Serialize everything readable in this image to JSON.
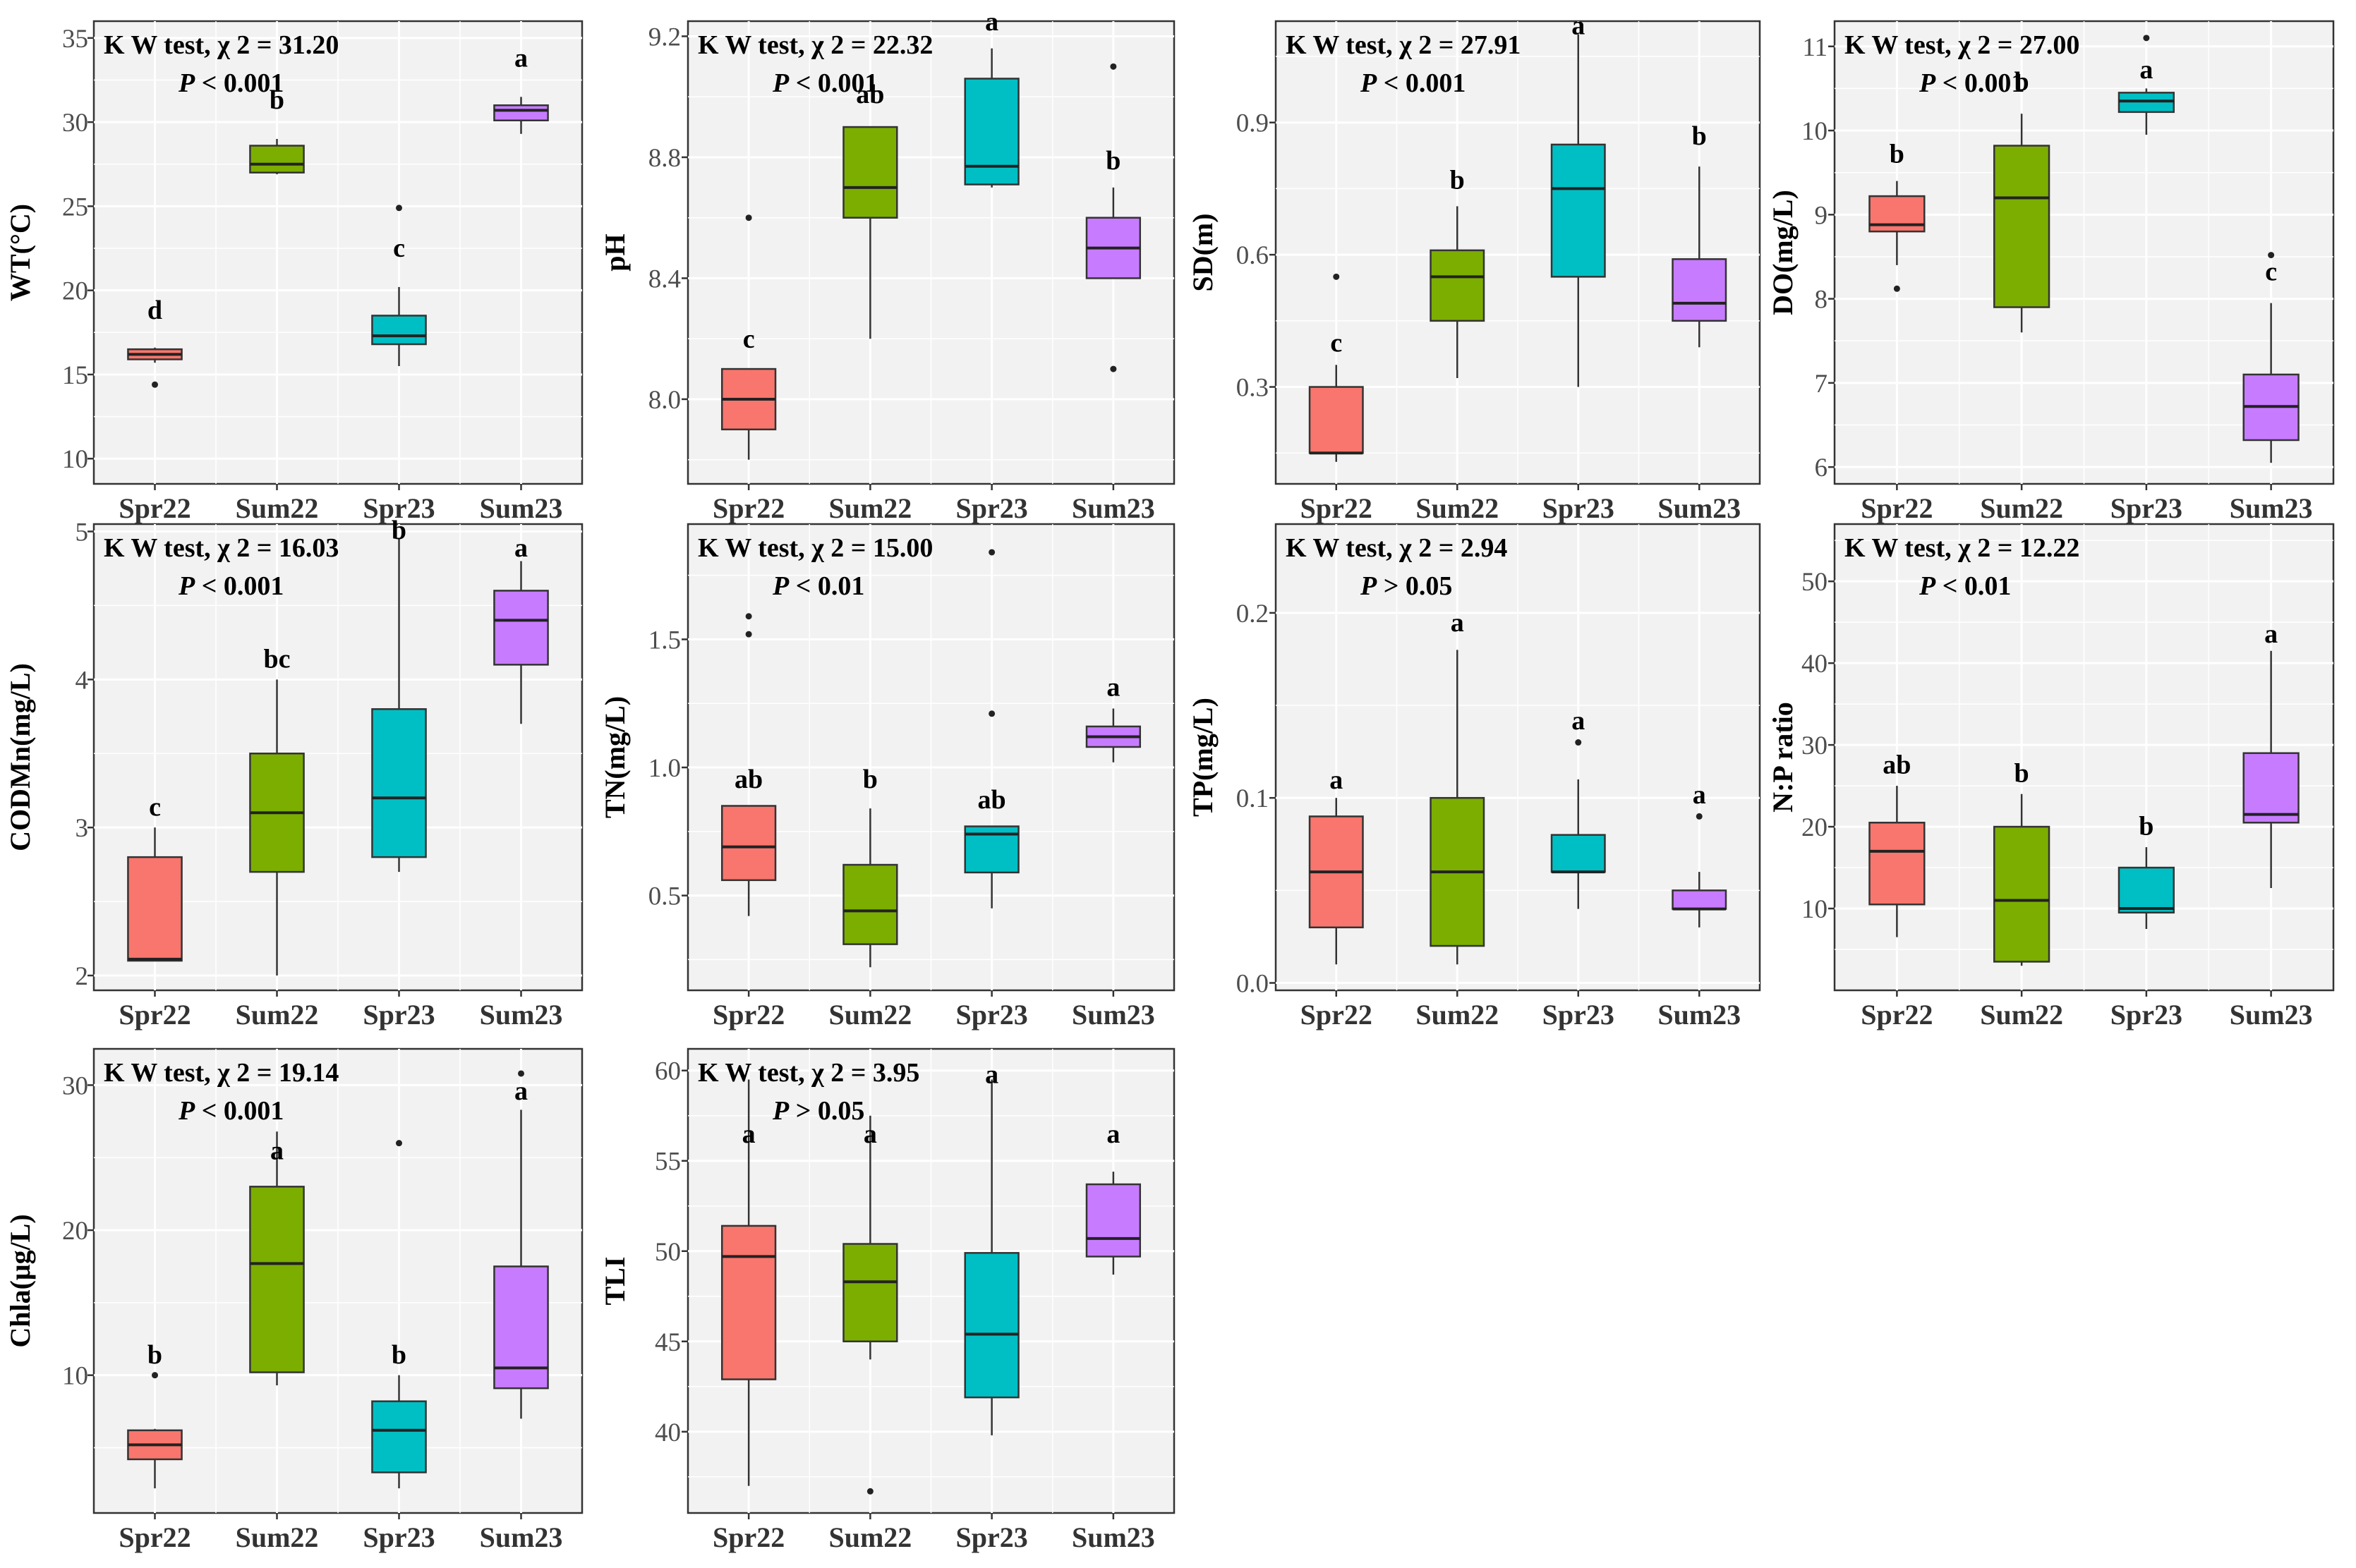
{
  "figure": {
    "group_colors": {
      "Spr22": "#F8766D",
      "Sum22": "#7CAE00",
      "Spr23": "#00BFC4",
      "Sum23": "#C77CFF"
    },
    "categories": [
      "Spr22",
      "Sum22",
      "Spr23",
      "Sum23"
    ]
  },
  "chart_data": [
    {
      "type": "box",
      "id": "wt",
      "ylabel": "WT(°C)",
      "ylim": [
        8.5,
        36
      ],
      "yticks": [
        10,
        15,
        20,
        25,
        30,
        35
      ],
      "stat_line1": "K W test, χ 2 = 31.20",
      "stat_line2": "P < 0.001",
      "groups": [
        {
          "name": "Spr22",
          "whisker_low": 15.7,
          "q1": 15.9,
          "median": 16.2,
          "q3": 16.5,
          "whisker_high": 16.6,
          "outliers": [
            14.4
          ],
          "letter": "d",
          "letter_y": 18.3
        },
        {
          "name": "Sum22",
          "whisker_low": 26.9,
          "q1": 27.0,
          "median": 27.5,
          "q3": 28.6,
          "whisker_high": 29.0,
          "outliers": [],
          "letter": "b",
          "letter_y": 30.8
        },
        {
          "name": "Spr23",
          "whisker_low": 15.5,
          "q1": 16.8,
          "median": 17.3,
          "q3": 18.5,
          "whisker_high": 20.2,
          "outliers": [
            24.9
          ],
          "letter": "c",
          "letter_y": 22.0
        },
        {
          "name": "Sum23",
          "whisker_low": 29.3,
          "q1": 30.1,
          "median": 30.7,
          "q3": 31.0,
          "whisker_high": 31.5,
          "outliers": [],
          "letter": "a",
          "letter_y": 33.3
        }
      ]
    },
    {
      "type": "box",
      "id": "ph",
      "ylabel": "pH",
      "ylim": [
        7.72,
        9.25
      ],
      "yticks": [
        8.0,
        8.4,
        8.8,
        9.2
      ],
      "tick_decimals": 1,
      "stat_line1": "K W test, χ 2 = 22.32",
      "stat_line2": "P < 0.001",
      "groups": [
        {
          "name": "Spr22",
          "whisker_low": 7.8,
          "q1": 7.9,
          "median": 8.0,
          "q3": 8.1,
          "whisker_high": 8.1,
          "outliers": [
            8.6
          ],
          "letter": "c",
          "letter_y": 8.17
        },
        {
          "name": "Sum22",
          "whisker_low": 8.2,
          "q1": 8.6,
          "median": 8.7,
          "q3": 8.9,
          "whisker_high": 8.9,
          "outliers": [],
          "letter": "ab",
          "letter_y": 8.98
        },
        {
          "name": "Spr23",
          "whisker_low": 8.7,
          "q1": 8.71,
          "median": 8.77,
          "q3": 9.06,
          "whisker_high": 9.16,
          "outliers": [],
          "letter": "a",
          "letter_y": 9.22
        },
        {
          "name": "Sum23",
          "whisker_low": 8.4,
          "q1": 8.4,
          "median": 8.5,
          "q3": 8.6,
          "whisker_high": 8.7,
          "outliers": [
            9.1,
            8.1
          ],
          "letter": "b",
          "letter_y": 8.76
        }
      ]
    },
    {
      "type": "box",
      "id": "sd",
      "ylabel": "SD(m)",
      "ylim": [
        0.08,
        1.13
      ],
      "yticks": [
        0.3,
        0.6,
        0.9
      ],
      "tick_decimals": 1,
      "stat_line1": "K W test, χ 2 = 27.91",
      "stat_line2": "P < 0.001",
      "groups": [
        {
          "name": "Spr22",
          "whisker_low": 0.13,
          "q1": 0.15,
          "median": 0.15,
          "q3": 0.3,
          "whisker_high": 0.35,
          "outliers": [
            0.55
          ],
          "letter": "c",
          "letter_y": 0.38
        },
        {
          "name": "Sum22",
          "whisker_low": 0.32,
          "q1": 0.45,
          "median": 0.55,
          "q3": 0.61,
          "whisker_high": 0.71,
          "outliers": [],
          "letter": "b",
          "letter_y": 0.75
        },
        {
          "name": "Spr23",
          "whisker_low": 0.3,
          "q1": 0.55,
          "median": 0.75,
          "q3": 0.85,
          "whisker_high": 1.1,
          "outliers": [],
          "letter": "a",
          "letter_y": 1.1
        },
        {
          "name": "Sum23",
          "whisker_low": 0.39,
          "q1": 0.45,
          "median": 0.49,
          "q3": 0.59,
          "whisker_high": 0.8,
          "outliers": [],
          "letter": "b",
          "letter_y": 0.85
        }
      ]
    },
    {
      "type": "box",
      "id": "do",
      "ylabel": "DO(mg/L)",
      "ylim": [
        5.8,
        11.3
      ],
      "yticks": [
        6,
        7,
        8,
        9,
        10,
        11
      ],
      "stat_line1": "K W test, χ 2 = 27.00",
      "stat_line2": "P < 0.001",
      "groups": [
        {
          "name": "Spr22",
          "whisker_low": 8.4,
          "q1": 8.8,
          "median": 8.88,
          "q3": 9.22,
          "whisker_high": 9.4,
          "outliers": [
            8.12
          ],
          "letter": "b",
          "letter_y": 9.62
        },
        {
          "name": "Sum22",
          "whisker_low": 7.6,
          "q1": 7.9,
          "median": 9.2,
          "q3": 9.82,
          "whisker_high": 10.2,
          "outliers": [],
          "letter": "b",
          "letter_y": 10.48
        },
        {
          "name": "Spr23",
          "whisker_low": 9.95,
          "q1": 10.22,
          "median": 10.35,
          "q3": 10.45,
          "whisker_high": 10.5,
          "outliers": [
            11.1
          ],
          "letter": "a",
          "letter_y": 10.62
        },
        {
          "name": "Sum23",
          "whisker_low": 6.05,
          "q1": 6.32,
          "median": 6.72,
          "q3": 7.1,
          "whisker_high": 7.95,
          "outliers": [
            8.52
          ],
          "letter": "c",
          "letter_y": 8.22
        }
      ]
    },
    {
      "type": "box",
      "id": "codmn",
      "ylabel": "CODMn(mg/L)",
      "ylim": [
        1.9,
        5.05
      ],
      "yticks": [
        2,
        3,
        4,
        5
      ],
      "stat_line1": "K W test, χ 2 = 16.03",
      "stat_line2": "P < 0.001",
      "groups": [
        {
          "name": "Spr22",
          "whisker_low": 2.1,
          "q1": 2.1,
          "median": 2.11,
          "q3": 2.8,
          "whisker_high": 3.0,
          "outliers": [],
          "letter": "c",
          "letter_y": 3.08
        },
        {
          "name": "Sum22",
          "whisker_low": 2.0,
          "q1": 2.7,
          "median": 3.1,
          "q3": 3.5,
          "whisker_high": 4.0,
          "outliers": [],
          "letter": "bc",
          "letter_y": 4.08
        },
        {
          "name": "Spr23",
          "whisker_low": 2.7,
          "q1": 2.8,
          "median": 3.2,
          "q3": 3.8,
          "whisker_high": 4.95,
          "outliers": [],
          "letter": "b",
          "letter_y": 4.95
        },
        {
          "name": "Sum23",
          "whisker_low": 3.7,
          "q1": 4.1,
          "median": 4.4,
          "q3": 4.6,
          "whisker_high": 4.8,
          "outliers": [],
          "letter": "a",
          "letter_y": 4.83
        }
      ]
    },
    {
      "type": "box",
      "id": "tn",
      "ylabel": "TN(mg/L)",
      "ylim": [
        0.13,
        1.95
      ],
      "yticks": [
        0.5,
        1.0,
        1.5
      ],
      "tick_decimals": 1,
      "stat_line1": "K W test, χ 2 = 15.00",
      "stat_line2": "P < 0.01",
      "groups": [
        {
          "name": "Spr22",
          "whisker_low": 0.42,
          "q1": 0.56,
          "median": 0.69,
          "q3": 0.85,
          "whisker_high": 0.85,
          "outliers": [
            1.52,
            1.59
          ],
          "letter": "ab",
          "letter_y": 0.92
        },
        {
          "name": "Sum22",
          "whisker_low": 0.22,
          "q1": 0.31,
          "median": 0.44,
          "q3": 0.62,
          "whisker_high": 0.84,
          "outliers": [],
          "letter": "b",
          "letter_y": 0.92
        },
        {
          "name": "Spr23",
          "whisker_low": 0.45,
          "q1": 0.59,
          "median": 0.74,
          "q3": 0.77,
          "whisker_high": 0.77,
          "outliers": [
            1.21,
            1.84
          ],
          "letter": "ab",
          "letter_y": 0.84
        },
        {
          "name": "Sum23",
          "whisker_low": 1.02,
          "q1": 1.08,
          "median": 1.12,
          "q3": 1.16,
          "whisker_high": 1.23,
          "outliers": [],
          "letter": "a",
          "letter_y": 1.28
        }
      ]
    },
    {
      "type": "box",
      "id": "tp",
      "ylabel": "TP(mg/L)",
      "ylim": [
        -0.004,
        0.248
      ],
      "yticks": [
        0.0,
        0.1,
        0.2
      ],
      "tick_decimals": 1,
      "stat_line1": "K W test, χ 2 = 2.94",
      "stat_line2": "P > 0.05",
      "groups": [
        {
          "name": "Spr22",
          "whisker_low": 0.01,
          "q1": 0.03,
          "median": 0.06,
          "q3": 0.09,
          "whisker_high": 0.1,
          "outliers": [],
          "letter": "a",
          "letter_y": 0.105
        },
        {
          "name": "Sum22",
          "whisker_low": 0.01,
          "q1": 0.02,
          "median": 0.06,
          "q3": 0.1,
          "whisker_high": 0.18,
          "outliers": [],
          "letter": "a",
          "letter_y": 0.19
        },
        {
          "name": "Spr23",
          "whisker_low": 0.04,
          "q1": 0.06,
          "median": 0.06,
          "q3": 0.08,
          "whisker_high": 0.11,
          "outliers": [
            0.13
          ],
          "letter": "a",
          "letter_y": 0.137
        },
        {
          "name": "Sum23",
          "whisker_low": 0.03,
          "q1": 0.04,
          "median": 0.04,
          "q3": 0.05,
          "whisker_high": 0.06,
          "outliers": [
            0.09
          ],
          "letter": "a",
          "letter_y": 0.097
        }
      ]
    },
    {
      "type": "box",
      "id": "np",
      "ylabel": "N:P ratio",
      "ylim": [
        0,
        57
      ],
      "yticks": [
        10,
        20,
        30,
        40,
        50
      ],
      "stat_line1": "K W test, χ 2 = 12.22",
      "stat_line2": "P < 0.01",
      "groups": [
        {
          "name": "Spr22",
          "whisker_low": 6.5,
          "q1": 10.5,
          "median": 17.0,
          "q3": 20.5,
          "whisker_high": 25.0,
          "outliers": [],
          "letter": "ab",
          "letter_y": 26.5
        },
        {
          "name": "Sum22",
          "whisker_low": 3.0,
          "q1": 3.5,
          "median": 11.0,
          "q3": 20.0,
          "whisker_high": 24.0,
          "outliers": [],
          "letter": "b",
          "letter_y": 25.5
        },
        {
          "name": "Spr23",
          "whisker_low": 7.5,
          "q1": 9.5,
          "median": 10.0,
          "q3": 15.0,
          "whisker_high": 17.5,
          "outliers": [],
          "letter": "b",
          "letter_y": 19.0
        },
        {
          "name": "Sum23",
          "whisker_low": 12.5,
          "q1": 20.5,
          "median": 21.5,
          "q3": 29.0,
          "whisker_high": 41.5,
          "outliers": [],
          "letter": "a",
          "letter_y": 42.5
        }
      ]
    },
    {
      "type": "box",
      "id": "chla",
      "ylabel": "Chla(μg/L)",
      "ylim": [
        0.5,
        32.5
      ],
      "yticks": [
        10,
        20,
        30
      ],
      "stat_line1": "K W test, χ 2 = 19.14",
      "stat_line2": "P < 0.001",
      "groups": [
        {
          "name": "Spr22",
          "whisker_low": 2.2,
          "q1": 4.2,
          "median": 5.2,
          "q3": 6.2,
          "whisker_high": 6.3,
          "outliers": [
            10.0
          ],
          "letter": "b",
          "letter_y": 10.8
        },
        {
          "name": "Sum22",
          "whisker_low": 9.3,
          "q1": 10.2,
          "median": 17.7,
          "q3": 23.0,
          "whisker_high": 26.8,
          "outliers": [],
          "letter": "a",
          "letter_y": 24.9
        },
        {
          "name": "Spr23",
          "whisker_low": 2.2,
          "q1": 3.3,
          "median": 6.2,
          "q3": 8.2,
          "whisker_high": 10.0,
          "outliers": [
            26.0
          ],
          "letter": "b",
          "letter_y": 10.8
        },
        {
          "name": "Sum23",
          "whisker_low": 7.0,
          "q1": 9.1,
          "median": 10.5,
          "q3": 17.5,
          "whisker_high": 28.3,
          "outliers": [
            30.8
          ],
          "letter": "a",
          "letter_y": 29.0
        }
      ]
    },
    {
      "type": "box",
      "id": "tli",
      "ylabel": "TLI",
      "ylim": [
        35.5,
        61.2
      ],
      "yticks": [
        40,
        45,
        50,
        55,
        60
      ],
      "stat_line1": "K W test, χ 2 = 3.95",
      "stat_line2": "P > 0.05",
      "groups": [
        {
          "name": "Spr22",
          "whisker_low": 37.0,
          "q1": 42.9,
          "median": 49.7,
          "q3": 51.4,
          "whisker_high": 59.5,
          "outliers": [],
          "letter": "a",
          "letter_y": 56.0
        },
        {
          "name": "Sum22",
          "whisker_low": 44.0,
          "q1": 45.0,
          "median": 48.3,
          "q3": 50.4,
          "whisker_high": 57.5,
          "outliers": [
            36.7
          ],
          "letter": "a",
          "letter_y": 56.0
        },
        {
          "name": "Spr23",
          "whisker_low": 39.8,
          "q1": 41.9,
          "median": 45.4,
          "q3": 49.9,
          "whisker_high": 59.5,
          "outliers": [],
          "letter": "a",
          "letter_y": 59.3
        },
        {
          "name": "Sum23",
          "whisker_low": 48.7,
          "q1": 49.7,
          "median": 50.7,
          "q3": 53.7,
          "whisker_high": 54.4,
          "outliers": [],
          "letter": "a",
          "letter_y": 56.0
        }
      ]
    }
  ]
}
